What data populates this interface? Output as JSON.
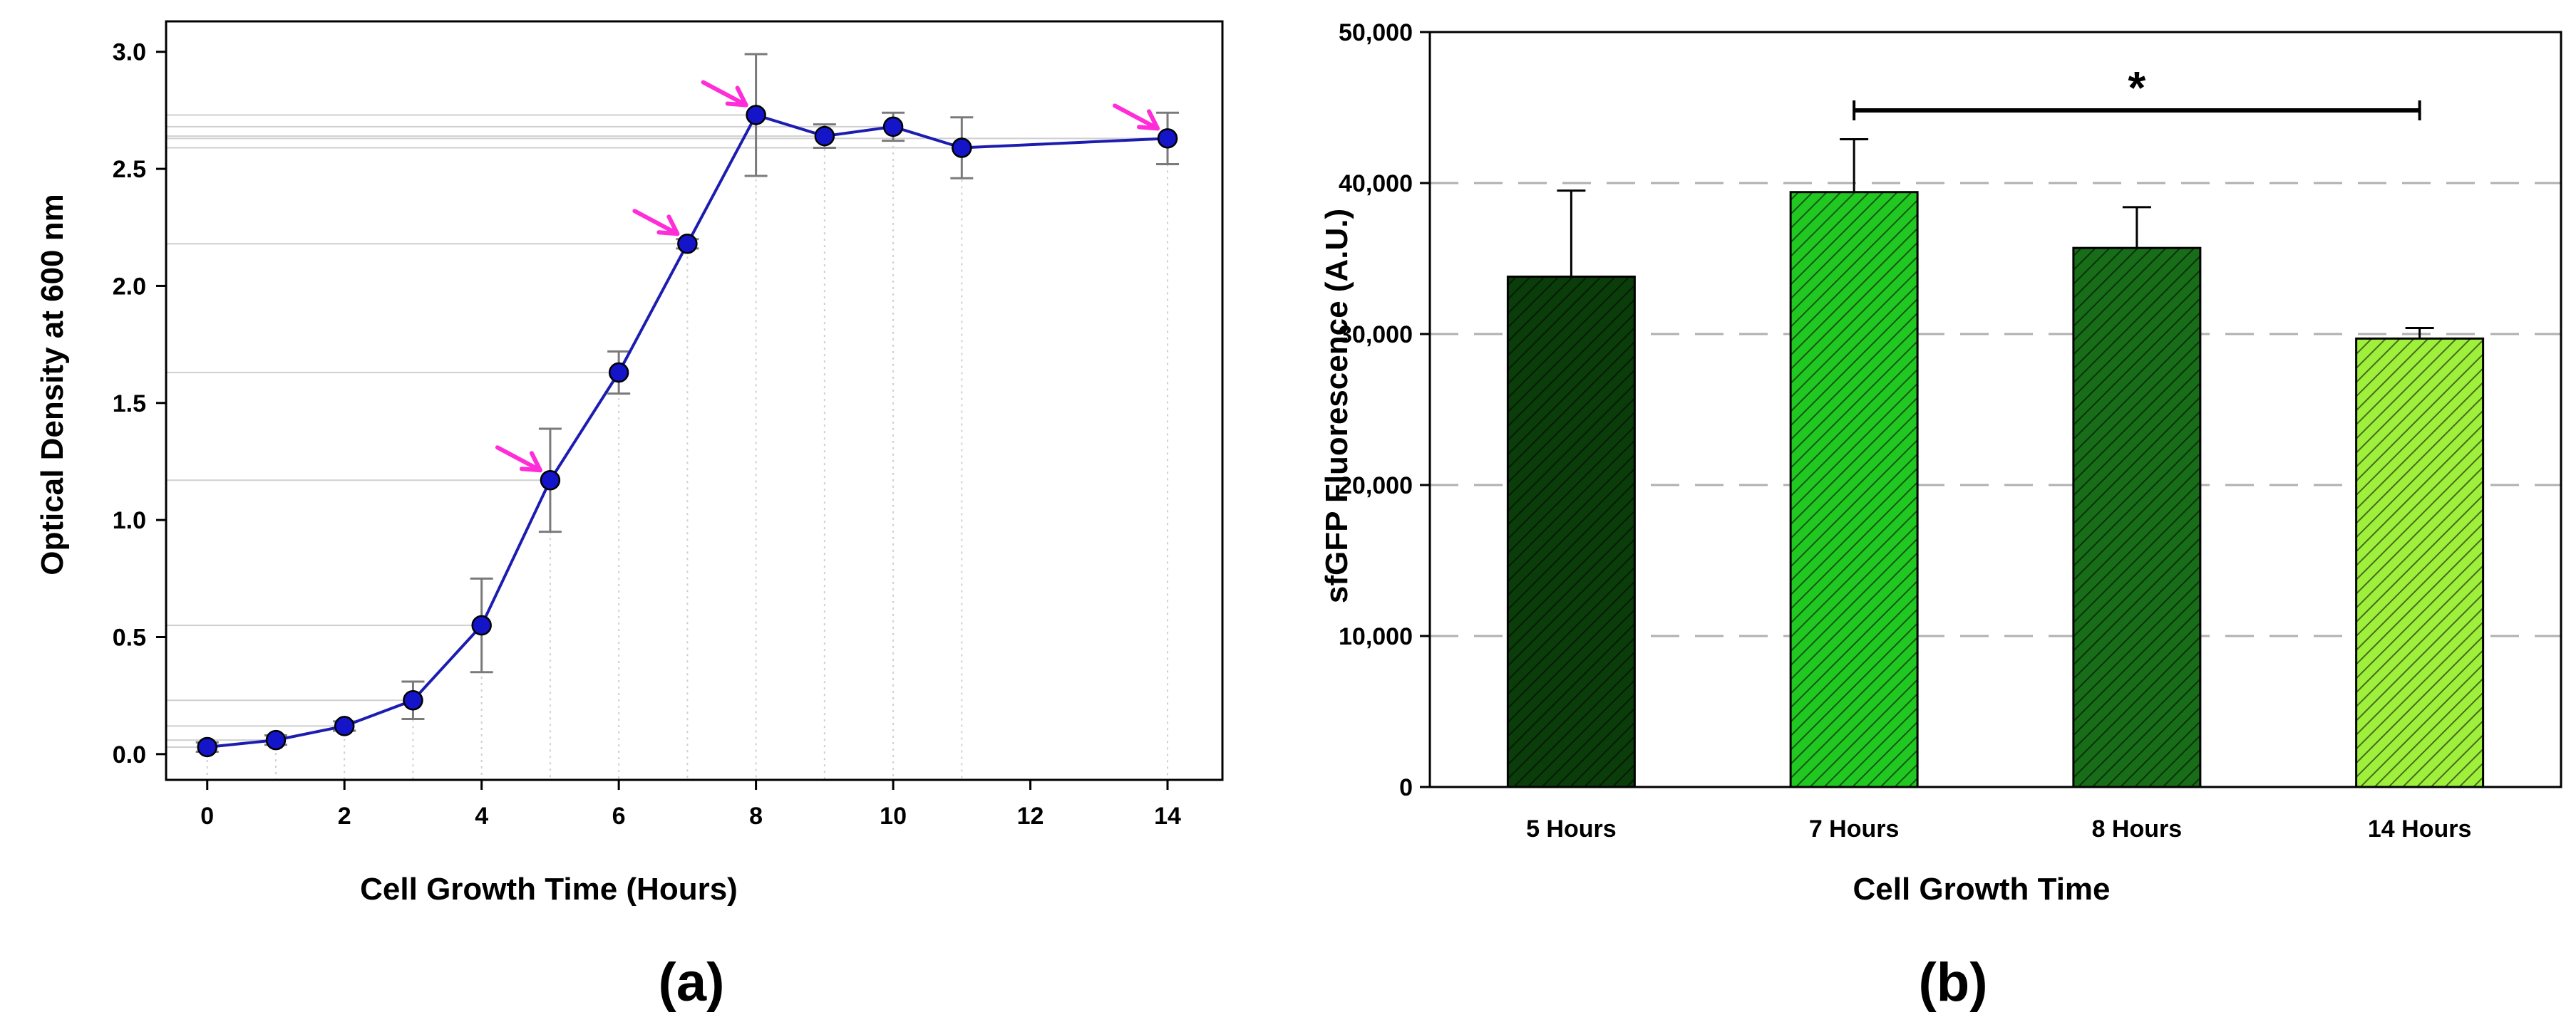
{
  "colors": {
    "line": "#1c1cb0",
    "marker": "#1414c8",
    "arrow": "#ff2cd8",
    "error_bar": "#7a7a7a",
    "guide": "#cfcfcf",
    "bar_5h": "#0a3d0a",
    "bar_7h": "#22c822",
    "bar_8h": "#186e18",
    "bar_14h": "#9ef03c"
  },
  "chart_data": [
    {
      "panel_label": "(a)",
      "type": "line",
      "xlabel": "Cell Growth Time (Hours)",
      "ylabel": "Optical Density at 600 nm",
      "xlim": [
        -0.6,
        14.8
      ],
      "ylim": [
        -0.11,
        3.13
      ],
      "xticks": [
        0,
        2,
        4,
        6,
        8,
        10,
        12,
        14
      ],
      "yticks": [
        0.0,
        0.5,
        1.0,
        1.5,
        2.0,
        2.5,
        3.0
      ],
      "xtick_labels": [
        "0",
        "2",
        "4",
        "6",
        "8",
        "10",
        "12",
        "14"
      ],
      "ytick_labels": [
        "0.0",
        "0.5",
        "1.0",
        "1.5",
        "2.0",
        "2.5",
        "3.0"
      ],
      "grid": false,
      "series": [
        {
          "x": [
            0,
            1,
            2,
            3,
            4,
            5,
            6,
            7,
            8,
            9,
            10,
            11,
            14
          ],
          "y": [
            0.03,
            0.06,
            0.12,
            0.23,
            0.55,
            1.17,
            1.63,
            2.18,
            2.73,
            2.64,
            2.68,
            2.59,
            2.63
          ],
          "error": [
            0.02,
            0.02,
            0.02,
            0.08,
            0.2,
            0.22,
            0.09,
            0.02,
            0.26,
            0.05,
            0.06,
            0.13,
            0.11
          ]
        }
      ],
      "arrows_at_x": [
        5,
        7,
        8,
        14
      ]
    },
    {
      "panel_label": "(b)",
      "type": "bar",
      "xlabel": "Cell Growth Time",
      "ylabel": "sfGFP Fluorescence (A.U.)",
      "categories": [
        "5 Hours",
        "7 Hours",
        "8 Hours",
        "14 Hours"
      ],
      "values": [
        33800,
        39400,
        35700,
        29700
      ],
      "error": [
        5700,
        3500,
        2700,
        700
      ],
      "ylim": [
        0,
        50000
      ],
      "yticks": [
        0,
        10000,
        20000,
        30000,
        40000,
        50000
      ],
      "ytick_labels": [
        "0",
        "10,000",
        "20,000",
        "30,000",
        "40,000",
        "50,000"
      ],
      "gridlines": [
        10000,
        20000,
        30000,
        40000
      ],
      "grid": "dashed horizontal",
      "significance": {
        "from": "7 Hours",
        "to": "14 Hours",
        "label": "*"
      }
    }
  ]
}
